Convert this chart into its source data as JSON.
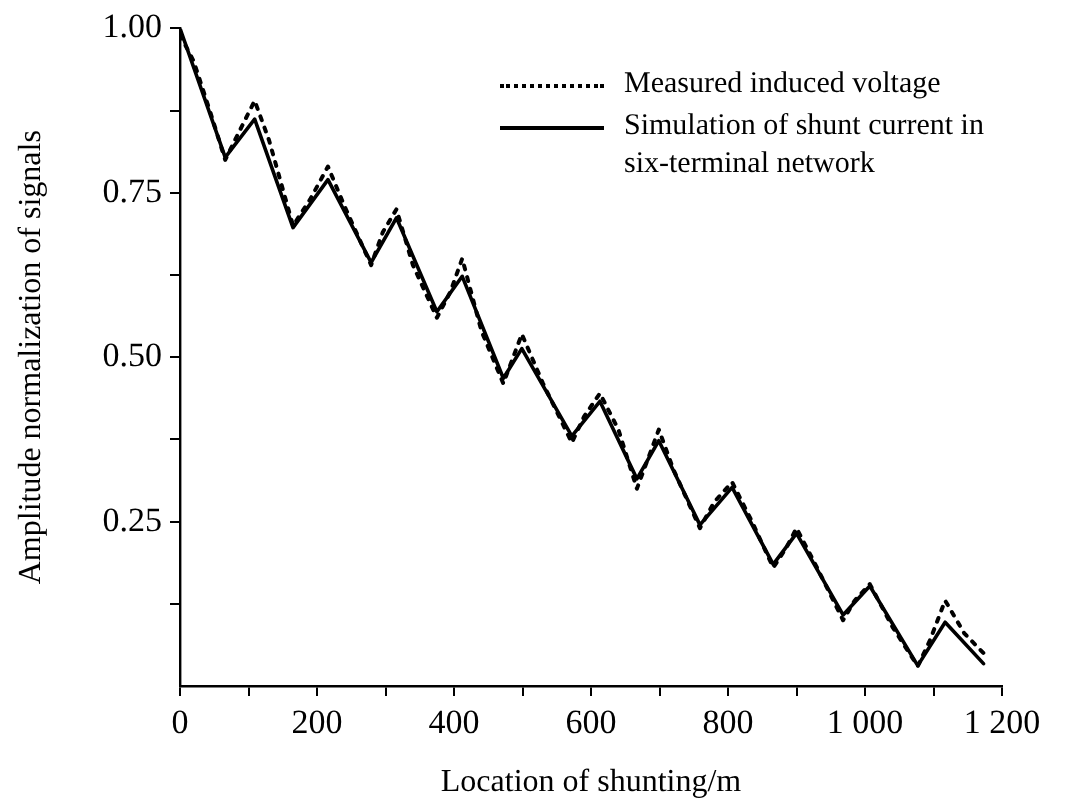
{
  "chart_data": {
    "type": "line",
    "xlabel": "Location of shunting/m",
    "ylabel": "Amplitude normalization of signals",
    "xlim": [
      0,
      1200
    ],
    "ylim": [
      0,
      1
    ],
    "xticks": [
      0,
      {
        "value": 100,
        "label": null
      },
      200,
      {
        "value": 300,
        "label": null
      },
      400,
      {
        "value": 500,
        "label": null
      },
      600,
      {
        "value": 700,
        "label": null
      },
      800,
      {
        "value": 900,
        "label": null
      },
      {
        "value": 1000,
        "label": "1 000"
      },
      {
        "value": 1100,
        "label": null
      },
      {
        "value": 1200,
        "label": "1 200"
      }
    ],
    "yticks": [
      {
        "value": 0.125,
        "label": null
      },
      {
        "value": 0.25,
        "label": "0.25"
      },
      {
        "value": 0.375,
        "label": null
      },
      {
        "value": 0.5,
        "label": "0.50"
      },
      {
        "value": 0.625,
        "label": null
      },
      {
        "value": 0.75,
        "label": "0.75"
      },
      {
        "value": 0.875,
        "label": null
      },
      {
        "value": 1,
        "label": "1.00"
      }
    ],
    "grid": false,
    "legend": "top right",
    "marker": "none",
    "series": [
      {
        "name": "Measured induced voltage",
        "color": "#000000",
        "line_style": "dotted",
        "x": [
          0,
          20,
          45,
          66,
          85,
          109,
          130,
          165,
          190,
          216,
          240,
          279,
          296,
          316,
          340,
          375,
          395,
          412,
          440,
          472,
          499,
          530,
          572,
          590,
          613,
          640,
          667,
          699,
          720,
          759,
          780,
          806,
          835,
          866,
          885,
          900,
          930,
          968,
          985,
          1007,
          1040,
          1077,
          1095,
          1117,
          1145,
          1173
        ],
        "values": [
          0.99,
          0.95,
          0.87,
          0.8,
          0.84,
          0.89,
          0.83,
          0.7,
          0.74,
          0.79,
          0.73,
          0.64,
          0.69,
          0.725,
          0.64,
          0.56,
          0.6,
          0.65,
          0.54,
          0.46,
          0.535,
          0.46,
          0.37,
          0.41,
          0.445,
          0.39,
          0.3,
          0.39,
          0.33,
          0.24,
          0.28,
          0.31,
          0.25,
          0.18,
          0.21,
          0.24,
          0.18,
          0.1,
          0.13,
          0.155,
          0.09,
          0.03,
          0.07,
          0.13,
          0.08,
          0.05
        ]
      },
      {
        "name": "Simulation of shunt current in six-terminal network",
        "color": "#000000",
        "line_style": "solid",
        "x": [
          0,
          66,
          109,
          165,
          216,
          279,
          316,
          375,
          412,
          472,
          499,
          572,
          613,
          667,
          699,
          759,
          806,
          866,
          900,
          968,
          1007,
          1077,
          1117,
          1173
        ],
        "values": [
          1.0,
          0.804,
          0.862,
          0.697,
          0.77,
          0.644,
          0.712,
          0.569,
          0.623,
          0.468,
          0.513,
          0.38,
          0.433,
          0.315,
          0.373,
          0.245,
          0.302,
          0.185,
          0.232,
          0.108,
          0.152,
          0.031,
          0.097,
          0.034
        ]
      }
    ]
  }
}
